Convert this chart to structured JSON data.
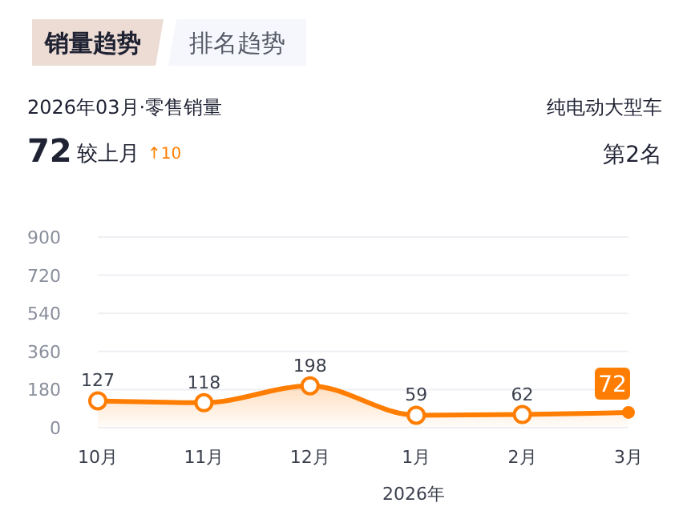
{
  "chart_data": {
    "type": "area",
    "title": "2026年03月·零售销量",
    "subtitle": "纯电动大型车",
    "xlabel": "2026年",
    "categories": [
      "10月",
      "11月",
      "12月",
      "1月",
      "2月",
      "3月"
    ],
    "series": [
      {
        "color": "#ff7d00",
        "values": [
          127,
          118,
          198,
          59,
          62,
          72
        ]
      }
    ],
    "ylim": [
      0,
      900
    ],
    "yticks": [
      0,
      180,
      360,
      540,
      720,
      900
    ],
    "grid": "y",
    "marker": "circle",
    "line_style": "solid",
    "data_labels": true,
    "annotations": [
      "销量趋势",
      "排名趋势",
      "72",
      "较上月",
      "↑10",
      "第2名"
    ]
  }
}
